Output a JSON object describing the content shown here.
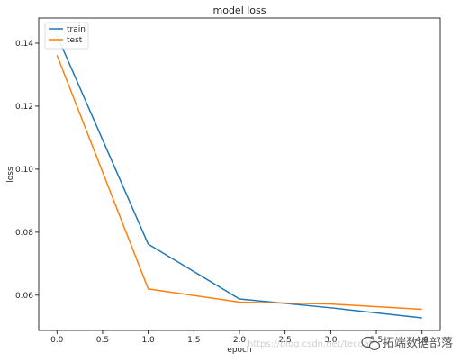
{
  "chart_data": {
    "type": "line",
    "title": "model loss",
    "xlabel": "epoch",
    "ylabel": "loss",
    "x": [
      0,
      1,
      2,
      3,
      4
    ],
    "series": [
      {
        "name": "train",
        "color": "#1f77b4",
        "values": [
          0.1425,
          0.0762,
          0.0588,
          0.056,
          0.0528
        ]
      },
      {
        "name": "test",
        "color": "#ff7f0e",
        "values": [
          0.1362,
          0.062,
          0.0578,
          0.0572,
          0.0555
        ]
      }
    ],
    "xlim": [
      -0.2,
      4.2
    ],
    "ylim": [
      0.0488,
      0.148
    ],
    "xticks": [
      0.0,
      0.5,
      1.0,
      1.5,
      2.0,
      2.5,
      3.0,
      3.5,
      4.0
    ],
    "xtick_labels": [
      "0.0",
      "0.5",
      "1.0",
      "1.5",
      "2.0",
      "2.5",
      "3.0",
      "3.5",
      "4.0"
    ],
    "yticks": [
      0.06,
      0.08,
      0.1,
      0.12,
      0.14
    ],
    "ytick_labels": [
      "0.06",
      "0.08",
      "0.10",
      "0.12",
      "0.14"
    ],
    "grid": false,
    "legend_position": "upper-left"
  },
  "watermark": {
    "url": "https://blog.csdn.net/tecdat",
    "brand": "拓端数据部落"
  }
}
